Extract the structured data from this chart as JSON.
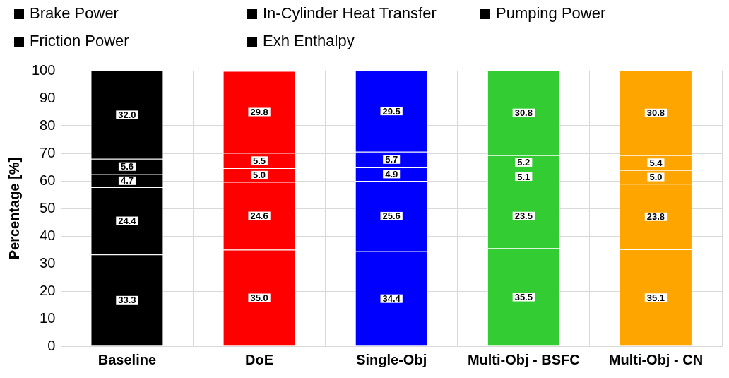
{
  "chart_data": {
    "type": "bar",
    "stacked": true,
    "ylabel": "Percentage [%]",
    "categories": [
      "Baseline",
      "DoE",
      "Single-Obj",
      "Multi-Obj - BSFC",
      "Multi-Obj - CN"
    ],
    "ylim": [
      0,
      100
    ],
    "yticks": [
      0,
      10,
      20,
      30,
      40,
      50,
      60,
      70,
      80,
      90,
      100
    ],
    "grid": true,
    "legend": "top",
    "series": [
      {
        "name": "Brake Power",
        "colors": [
          "#000000",
          "#ff0000",
          "#0000ff",
          "#33cc33",
          "#ffa500"
        ],
        "values": [
          33.3,
          35.0,
          34.4,
          35.5,
          35.1
        ],
        "value_labels": [
          "33.3",
          "35.0",
          "34.4",
          "35.5",
          "35.1"
        ]
      },
      {
        "name": "In-Cylinder Heat Transfer",
        "colors": [
          "#000000",
          "#ff0000",
          "#0000ff",
          "#33cc33",
          "#ffa500"
        ],
        "values": [
          24.4,
          24.6,
          25.6,
          23.5,
          23.8
        ],
        "value_labels": [
          "24.4",
          "24.6",
          "25.6",
          "23.5",
          "23.8"
        ]
      },
      {
        "name": "Pumping Power",
        "colors": [
          "#000000",
          "#ff0000",
          "#0000ff",
          "#33cc33",
          "#ffa500"
        ],
        "values": [
          4.7,
          5.0,
          4.9,
          5.1,
          5.0
        ],
        "value_labels": [
          "4.7",
          "5.0",
          "4.9",
          "5.1",
          "5.0"
        ]
      },
      {
        "name": "Friction Power",
        "colors": [
          "#000000",
          "#ff0000",
          "#0000ff",
          "#33cc33",
          "#ffa500"
        ],
        "values": [
          5.6,
          5.5,
          5.7,
          5.2,
          5.4
        ],
        "value_labels": [
          "5.6",
          "5.5",
          "5.7",
          "5.2",
          "5.4"
        ]
      },
      {
        "name": "Exh Enthalpy",
        "colors": [
          "#000000",
          "#ff0000",
          "#0000ff",
          "#33cc33",
          "#ffa500"
        ],
        "values": [
          32.0,
          29.8,
          29.5,
          30.8,
          30.8
        ],
        "value_labels": [
          "32.0",
          "29.8",
          "29.5",
          "30.8",
          "30.8"
        ]
      }
    ]
  }
}
